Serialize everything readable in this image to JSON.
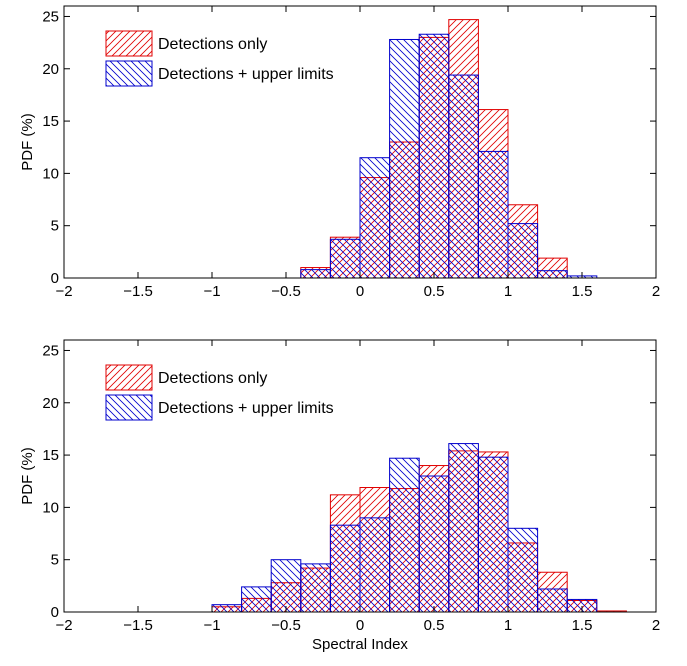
{
  "chart_data": [
    {
      "type": "bar",
      "panel": "top",
      "bin_width": 0.2,
      "bin_starts": [
        -0.4,
        -0.2,
        0.0,
        0.2,
        0.4,
        0.6,
        0.8,
        1.0,
        1.2,
        1.4
      ],
      "series": [
        {
          "name": "Detections only",
          "color": "#e00000",
          "values": [
            1.0,
            3.9,
            9.6,
            13.0,
            23.0,
            24.7,
            16.1,
            7.0,
            1.9,
            0.0
          ]
        },
        {
          "name": "Detections + upper limits",
          "color": "#0000cc",
          "values": [
            0.8,
            3.7,
            11.5,
            22.8,
            23.3,
            19.4,
            12.1,
            5.2,
            0.7,
            0.2
          ]
        }
      ],
      "xlim": [
        -2,
        2
      ],
      "ylim": [
        0,
        26
      ],
      "xticks": [
        -2,
        -1.5,
        -1,
        -0.5,
        0,
        0.5,
        1,
        1.5,
        2
      ],
      "xtick_labels": [
        "−2",
        "−1.5",
        "−1",
        "−0.5",
        "0",
        "0.5",
        "1",
        "1.5",
        "2"
      ],
      "yticks": [
        0,
        5,
        10,
        15,
        20,
        25
      ],
      "ytick_labels": [
        "0",
        "5",
        "10",
        "15",
        "20",
        "25"
      ],
      "xlabel": "",
      "ylabel": "PDF (%)",
      "legend_position": "top-left"
    },
    {
      "type": "bar",
      "panel": "bottom",
      "bin_width": 0.2,
      "bin_starts": [
        -1.0,
        -0.8,
        -0.6,
        -0.4,
        -0.2,
        0.0,
        0.2,
        0.4,
        0.6,
        0.8,
        1.0,
        1.2,
        1.4,
        1.6
      ],
      "series": [
        {
          "name": "Detections only",
          "color": "#e00000",
          "values": [
            0.5,
            1.3,
            2.8,
            4.2,
            11.2,
            11.9,
            11.8,
            14.0,
            15.4,
            15.3,
            6.6,
            3.8,
            1.1,
            0.1
          ]
        },
        {
          "name": "Detections + upper limits",
          "color": "#0000cc",
          "values": [
            0.7,
            2.4,
            5.0,
            4.6,
            8.3,
            9.0,
            14.7,
            13.0,
            16.1,
            14.8,
            8.0,
            2.2,
            1.2,
            0.0
          ]
        }
      ],
      "xlim": [
        -2,
        2
      ],
      "ylim": [
        0,
        26
      ],
      "xticks": [
        -2,
        -1.5,
        -1,
        -0.5,
        0,
        0.5,
        1,
        1.5,
        2
      ],
      "xtick_labels": [
        "−2",
        "−1.5",
        "−1",
        "−0.5",
        "0",
        "0.5",
        "1",
        "1.5",
        "2"
      ],
      "yticks": [
        0,
        5,
        10,
        15,
        20,
        25
      ],
      "ytick_labels": [
        "0",
        "5",
        "10",
        "15",
        "20",
        "25"
      ],
      "xlabel": "Spectral Index",
      "ylabel": "PDF (%)",
      "legend_position": "top-left"
    }
  ]
}
